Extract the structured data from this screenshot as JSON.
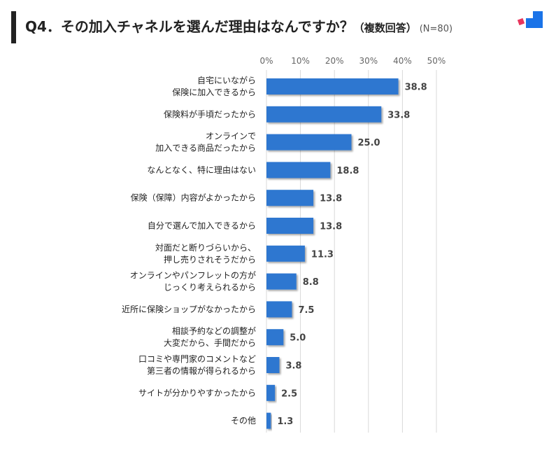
{
  "header": {
    "title": "Q4．その加入チャネルを選んだ理由はなんですか？",
    "subtitle": "（複数回答）",
    "sample": "(N=80)"
  },
  "colors": {
    "bar": "#2f77d0",
    "accent_red": "#e8365d",
    "accent_blue": "#1a73e8"
  },
  "chart_data": {
    "type": "bar",
    "orientation": "horizontal",
    "categories": [
      [
        "自宅にいながら",
        "保険に加入できるから"
      ],
      [
        "保険料が手頃だったから"
      ],
      [
        "オンラインで",
        "加入できる商品だったから"
      ],
      [
        "なんとなく、特に理由はない"
      ],
      [
        "保険（保障）内容がよかったから"
      ],
      [
        "自分で選んで加入できるから"
      ],
      [
        "対面だと断りづらいから、",
        "押し売りされそうだから"
      ],
      [
        "オンラインやパンフレットの方が",
        "じっくり考えられるから"
      ],
      [
        "近所に保険ショップがなかったから"
      ],
      [
        "相談予約などの調整が",
        "大変だから、手間だから"
      ],
      [
        "口コミや専門家のコメントなど",
        "第三者の情報が得られるから"
      ],
      [
        "サイトが分かりやすかったから"
      ],
      [
        "その他"
      ]
    ],
    "values": [
      38.8,
      33.8,
      25.0,
      18.8,
      13.8,
      13.8,
      11.3,
      8.8,
      7.5,
      5.0,
      3.8,
      2.5,
      1.3
    ],
    "value_labels": [
      "38.8",
      "33.8",
      "25.0",
      "18.8",
      "13.8",
      "13.8",
      "11.3",
      "8.8",
      "7.5",
      "5.0",
      "3.8",
      "2.5",
      "1.3"
    ],
    "xlim": [
      0,
      50
    ],
    "xticks": [
      0,
      10,
      20,
      30,
      40,
      50
    ],
    "xtick_labels": [
      "0%",
      "10%",
      "20%",
      "30%",
      "40%",
      "50%"
    ],
    "grid": true
  }
}
